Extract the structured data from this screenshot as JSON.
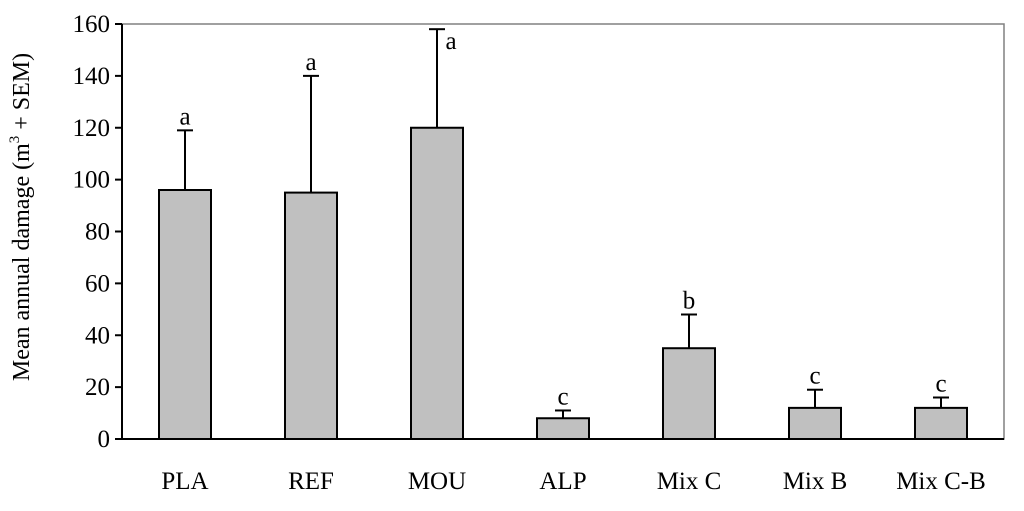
{
  "chart_data": {
    "type": "bar",
    "title": "",
    "xlabel": "",
    "ylabel_main": "Mean annual damage (m",
    "ylabel_sup": "3",
    "ylabel_tail": " + SEM)",
    "ylim": [
      0,
      160
    ],
    "ytick_step": 20,
    "grid": false,
    "categories": [
      "PLA",
      "REF",
      "MOU",
      "ALP",
      "Mix C",
      "Mix B",
      "Mix C-B"
    ],
    "values": [
      96,
      95,
      120,
      8,
      35,
      12,
      12
    ],
    "errors": [
      23,
      45,
      38,
      3,
      13,
      7,
      4
    ],
    "significance": [
      "a",
      "a",
      "a",
      "c",
      "b",
      "c",
      "c"
    ],
    "colors": {
      "bar_fill": "#c0c0c0",
      "stroke": "#000000"
    }
  }
}
